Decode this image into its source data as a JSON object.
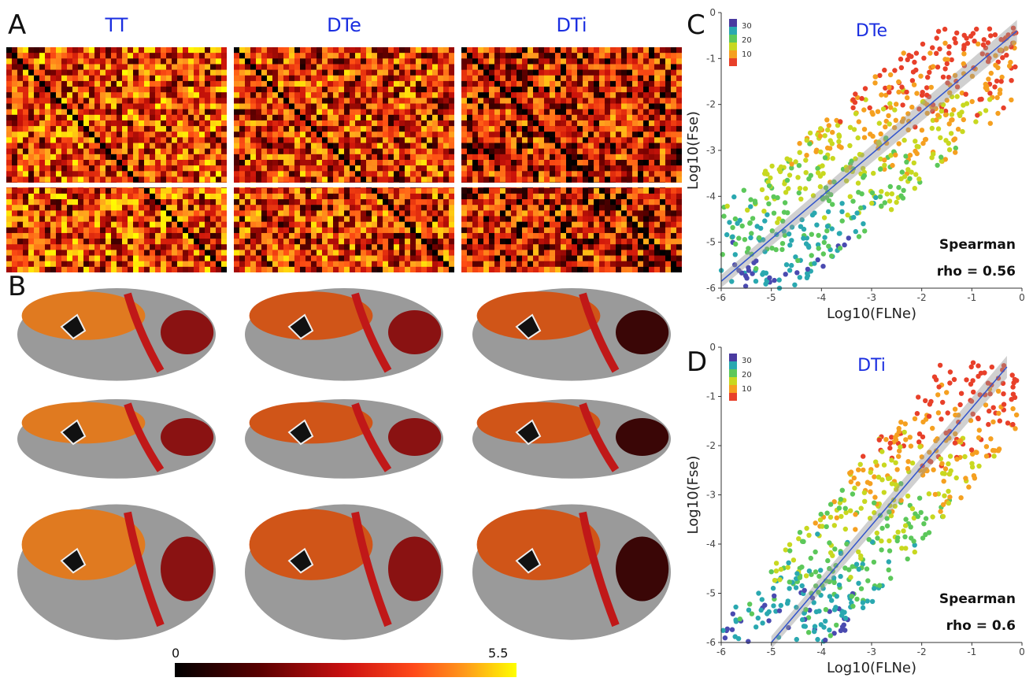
{
  "panels": {
    "a": "A",
    "b": "B",
    "c": "C",
    "d": "D"
  },
  "matrix_titles": [
    "TT",
    "DTe",
    "DTi"
  ],
  "colorbar": {
    "min_label": "0",
    "max_label": "5.5",
    "colors": [
      "#000000",
      "#5a0000",
      "#cc1010",
      "#ff4a1a",
      "#ff9a1a",
      "#ffff00"
    ]
  },
  "chart_data": [
    {
      "type": "scatter",
      "title": "DTe",
      "xlabel": "Log10(FLNe)",
      "ylabel": "Log10(Fse)",
      "xlim": [
        -6,
        0
      ],
      "ylim": [
        -6,
        0
      ],
      "xticks": [
        "-6",
        "-5",
        "-4",
        "-3",
        "-2",
        "-1",
        "0"
      ],
      "yticks": [
        "0",
        "-1",
        "-2",
        "-3",
        "-4",
        "-5",
        "-6"
      ],
      "legend": {
        "placement": "top-left",
        "ticks": [
          "30",
          "20",
          "10"
        ]
      },
      "annotation": {
        "line1": "Spearman",
        "line2": "rho =  0.56"
      },
      "fit": {
        "x": [
          -6,
          -0.1
        ],
        "y": [
          -5.85,
          -0.4
        ]
      }
    },
    {
      "type": "scatter",
      "title": "DTi",
      "xlabel": "Log10(FLNe)",
      "ylabel": "Log10(Fse)",
      "xlim": [
        -6,
        0
      ],
      "ylim": [
        -6,
        0
      ],
      "xticks": [
        "-6",
        "-5",
        "-4",
        "-3",
        "-2",
        "-1",
        "0"
      ],
      "yticks": [
        "0",
        "-1",
        "-2",
        "-3",
        "-4",
        "-5",
        "-6"
      ],
      "legend": {
        "placement": "top-left",
        "ticks": [
          "30",
          "20",
          "10"
        ]
      },
      "annotation": {
        "line1": "Spearman",
        "line2": "rho =  0.6"
      },
      "fit": {
        "x": [
          -5,
          -0.3
        ],
        "y": [
          -6,
          -0.4
        ]
      }
    }
  ]
}
